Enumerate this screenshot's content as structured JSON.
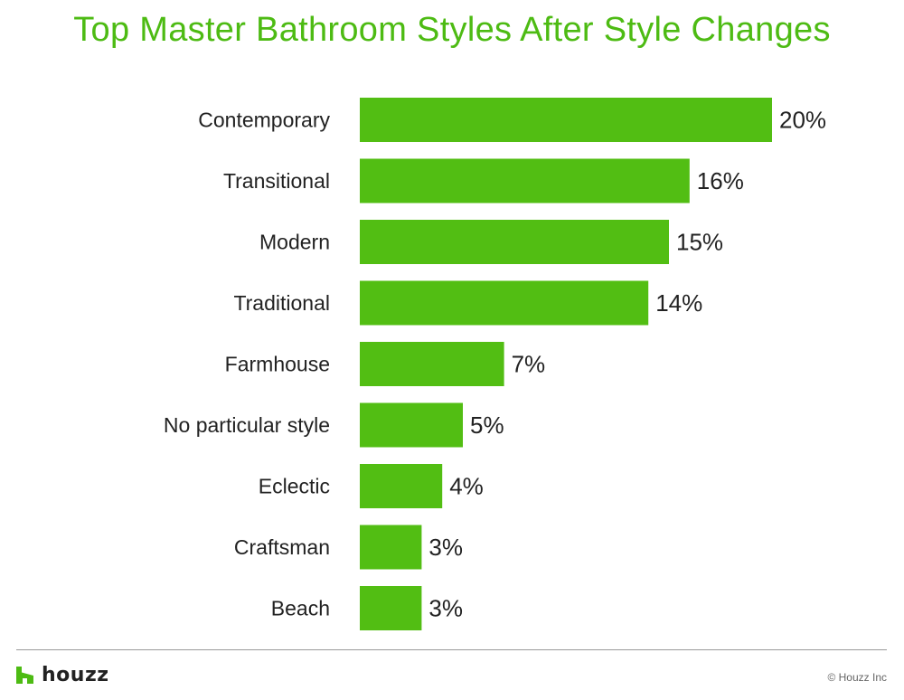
{
  "title": "Top Master Bathroom Styles After Style Changes",
  "colors": {
    "accent": "#4dbb13",
    "bar": "#52be13",
    "text": "#222222"
  },
  "chart_data": {
    "type": "bar",
    "orientation": "horizontal",
    "title": "Top Master Bathroom Styles After Style Changes",
    "categories": [
      "Contemporary",
      "Transitional",
      "Modern",
      "Traditional",
      "Farmhouse",
      "No particular style",
      "Eclectic",
      "Craftsman",
      "Beach"
    ],
    "values": [
      20,
      16,
      15,
      14,
      7,
      5,
      4,
      3,
      3
    ],
    "value_labels": [
      "20%",
      "16%",
      "15%",
      "14%",
      "7%",
      "5%",
      "4%",
      "3%",
      "3%"
    ],
    "unit": "%",
    "grid": false,
    "legend": "none"
  },
  "footer": {
    "logo_icon": "houzz-h-icon",
    "logo_text": "houzz",
    "copyright": "© Houzz Inc"
  }
}
